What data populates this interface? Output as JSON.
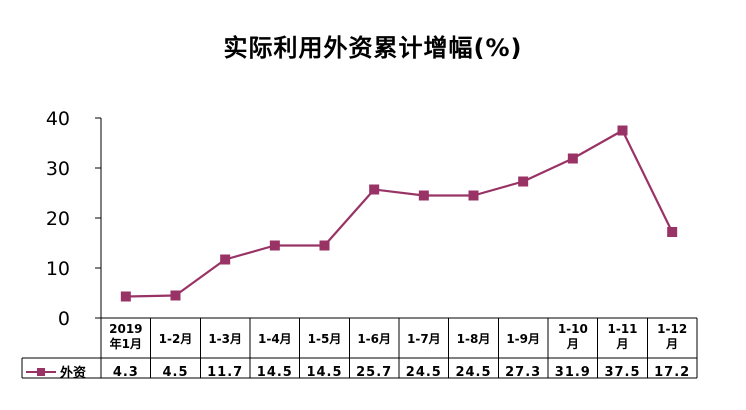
{
  "chart_data": {
    "type": "line",
    "title": "实际利用外资累计增幅(%)",
    "categories": [
      [
        "2019",
        "年1月"
      ],
      [
        "1-2月"
      ],
      [
        "1-3月"
      ],
      [
        "1-4月"
      ],
      [
        "1-5月"
      ],
      [
        "1-6月"
      ],
      [
        "1-7月"
      ],
      [
        "1-8月"
      ],
      [
        "1-9月"
      ],
      [
        "1-10",
        "月"
      ],
      [
        "1-11",
        "月"
      ],
      [
        "1-12",
        "月"
      ]
    ],
    "series": [
      {
        "name": "外资",
        "values": [
          4.3,
          4.5,
          11.7,
          14.5,
          14.5,
          25.7,
          24.5,
          24.5,
          27.3,
          31.9,
          37.5,
          17.2
        ],
        "display": [
          "4.3",
          "4.5",
          "11.7",
          "14.5",
          "14.5",
          "25.7",
          "24.5",
          "24.5",
          "27.3",
          "31.9",
          "37.5",
          "17.2"
        ],
        "color": "#993366"
      }
    ],
    "yticks": [
      "0",
      "10",
      "20",
      "30",
      "40"
    ],
    "ylim": [
      0,
      40
    ],
    "grid": false,
    "legend": "data-table-left"
  }
}
